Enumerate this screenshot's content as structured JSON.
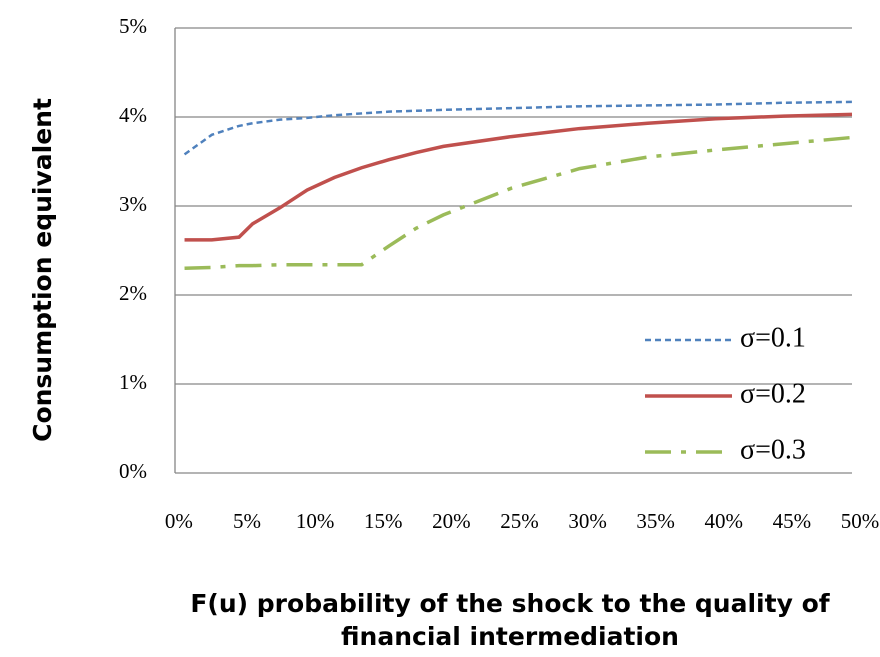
{
  "chart_data": {
    "type": "line",
    "ylabel": "Consumption  equivalent",
    "xlabel": [
      "F(u) probability of the shock to the quality of",
      "financial intermediation"
    ],
    "x": [
      1,
      3,
      5,
      6,
      8,
      10,
      12,
      14,
      16,
      18,
      20,
      25,
      30,
      35,
      40,
      45,
      50
    ],
    "series": [
      {
        "name": "σ=0.1",
        "color": "#4f81bd",
        "dash": "6,4",
        "values": [
          3.58,
          3.8,
          3.9,
          3.93,
          3.97,
          3.99,
          4.02,
          4.04,
          4.06,
          4.07,
          4.08,
          4.1,
          4.12,
          4.13,
          4.14,
          4.16,
          4.17
        ]
      },
      {
        "name": "σ=0.2",
        "color": "#c0504d",
        "dash": "none",
        "values": [
          2.62,
          2.62,
          2.65,
          2.8,
          2.98,
          3.18,
          3.32,
          3.43,
          3.52,
          3.6,
          3.67,
          3.78,
          3.87,
          3.93,
          3.98,
          4.01,
          4.03
        ]
      },
      {
        "name": "σ=0.3",
        "color": "#9bbb59",
        "dash": "26,10,5,10",
        "values": [
          2.3,
          2.31,
          2.33,
          2.33,
          2.34,
          2.34,
          2.34,
          2.34,
          2.55,
          2.75,
          2.9,
          3.2,
          3.42,
          3.55,
          3.63,
          3.7,
          3.77
        ]
      }
    ],
    "xlim": [
      0.3,
      50
    ],
    "ylim": [
      0,
      5
    ],
    "xticks": [
      {
        "value": 0,
        "label": "0%"
      },
      {
        "value": 5,
        "label": "5%"
      },
      {
        "value": 10,
        "label": "10%"
      },
      {
        "value": 15,
        "label": "15%"
      },
      {
        "value": 20,
        "label": "20%"
      },
      {
        "value": 25,
        "label": "25%"
      },
      {
        "value": 30,
        "label": "30%"
      },
      {
        "value": 35,
        "label": "35%"
      },
      {
        "value": 40,
        "label": "40%"
      },
      {
        "value": 45,
        "label": "45%"
      },
      {
        "value": 50,
        "label": "50%"
      }
    ],
    "yticks": [
      {
        "value": 0,
        "label": "0%"
      },
      {
        "value": 1,
        "label": "1%"
      },
      {
        "value": 2,
        "label": "2%"
      },
      {
        "value": 3,
        "label": "3%"
      },
      {
        "value": 4,
        "label": "4%"
      },
      {
        "value": 5,
        "label": "5%"
      }
    ],
    "grid": true,
    "legend": "lower-right"
  }
}
